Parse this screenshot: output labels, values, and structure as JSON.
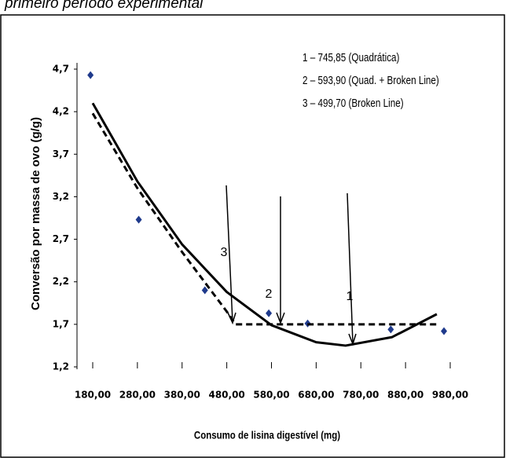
{
  "chart_data": {
    "type": "scatter",
    "title": "primeiro período experimental",
    "xlabel": "Consumo de lisina digestível (mg)",
    "ylabel": "Conversão por massa de ovo (g/g)",
    "xlim": [
      180,
      980
    ],
    "ylim": [
      1.2,
      4.7
    ],
    "xticks": [
      {
        "value": 180,
        "label": "180,00"
      },
      {
        "value": 280,
        "label": "280,00"
      },
      {
        "value": 380,
        "label": "380,00"
      },
      {
        "value": 480,
        "label": "480,00"
      },
      {
        "value": 580,
        "label": "580,00"
      },
      {
        "value": 680,
        "label": "680,00"
      },
      {
        "value": 780,
        "label": "780,00"
      },
      {
        "value": 880,
        "label": "880,00"
      },
      {
        "value": 980,
        "label": "980,00"
      }
    ],
    "yticks": [
      {
        "value": 1.2,
        "label": "1,2"
      },
      {
        "value": 1.7,
        "label": "1,7"
      },
      {
        "value": 2.2,
        "label": "2,2"
      },
      {
        "value": 2.7,
        "label": "2,7"
      },
      {
        "value": 3.2,
        "label": "3,2"
      },
      {
        "value": 3.7,
        "label": "3,7"
      },
      {
        "value": 4.2,
        "label": "4,2"
      },
      {
        "value": 4.7,
        "label": "4,7"
      }
    ],
    "series": [
      {
        "kind": "points",
        "color": "#1f3a8c",
        "x": [
          175,
          283,
          431,
          574,
          661,
          847,
          966
        ],
        "values": [
          4.63,
          2.93,
          2.1,
          1.83,
          1.71,
          1.64,
          1.62
        ]
      },
      {
        "kind": "solid",
        "color": "#000000",
        "x": [
          180,
          280,
          380,
          480,
          580,
          680,
          745.85,
          850,
          950
        ],
        "values": [
          4.3,
          3.38,
          2.64,
          2.08,
          1.69,
          1.49,
          1.45,
          1.55,
          1.82
        ]
      },
      {
        "kind": "dashed",
        "color": "#000000",
        "x": [
          180,
          280,
          380,
          480,
          499.7,
          593.9,
          950
        ],
        "values": [
          4.18,
          3.3,
          2.55,
          1.85,
          1.7,
          1.7,
          1.7
        ]
      }
    ],
    "annotations": [
      "1 – 745,85 (Quadrática)",
      "2 – 593,90 (Quad. + Broken Line)",
      "3 – 499,70 (Broken Line)"
    ],
    "arrow_labels": [
      "3",
      "2",
      "1"
    ]
  }
}
